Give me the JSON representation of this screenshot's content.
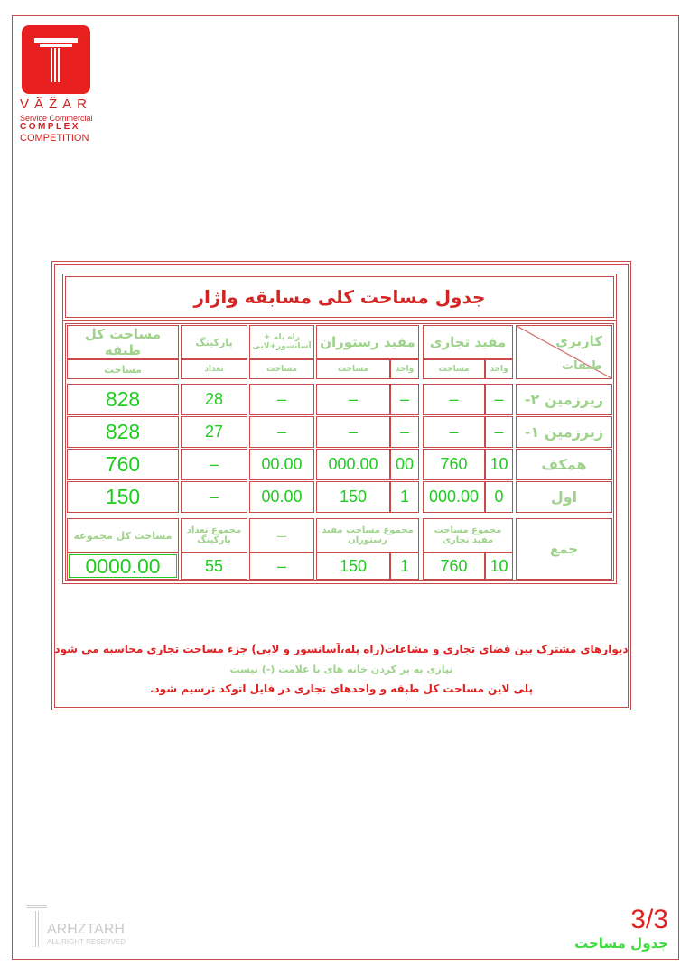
{
  "logo": {
    "name": "VÃŽAR",
    "line1": "Service Commercial",
    "line2": "COMPLEX",
    "line3": "COMPETITION"
  },
  "title": "جدول مساحت کلی مسابقه واژار",
  "headers": {
    "usage": "کاربری",
    "floors": "طبقات",
    "commercial": "مفید تجاری",
    "restaurant": "مفید رستوران",
    "stair": "راه پله + آسانسور+لابی",
    "parking": "پارکینگ",
    "total": "مساحت کل طبقه",
    "unit": "واحد",
    "area": "مساحت",
    "count": "تعداد"
  },
  "rows": [
    {
      "floor": "زیرزمین ۲-",
      "com_unit": "–",
      "com_area": "–",
      "res_unit": "–",
      "res_area": "–",
      "stair": "–",
      "parking": "28",
      "total": "828"
    },
    {
      "floor": "زیرزمین ۱-",
      "com_unit": "–",
      "com_area": "–",
      "res_unit": "–",
      "res_area": "–",
      "stair": "–",
      "parking": "27",
      "total": "828"
    },
    {
      "floor": "همکف",
      "com_unit": "10",
      "com_area": "760",
      "res_unit": "00",
      "res_area": "000.00",
      "stair": "00.00",
      "parking": "–",
      "total": "760"
    },
    {
      "floor": "اول",
      "com_unit": "0",
      "com_area": "000.00",
      "res_unit": "1",
      "res_area": "150",
      "stair": "00.00",
      "parking": "–",
      "total": "150"
    }
  ],
  "totals": {
    "label": "جمع",
    "com_label": "مجموع مساحت مفید تجاری",
    "res_label": "مجموع مساحت مفید رستوران",
    "stair_label": "–",
    "parking_label": "مجموع تعداد پارکینگ",
    "total_label": "مساحت کل مجموعه",
    "com_unit": "10",
    "com_area": "760",
    "res_unit": "1",
    "res_area": "150",
    "stair": "–",
    "parking": "55",
    "total": "0000.00"
  },
  "notes": [
    "دیوارهای مشترک بین فضای تجاری و مشاعات(راه پله،آسانسور و لابی) جزء مساحت  تجاری محاسبه می شود",
    "نیازی به پر کردن خانه های با علامت (-) نیست",
    "پلی لاین مساحت کل طبقه و واحدهای تجاری در فایل اتوکد ترسیم شود."
  ],
  "footer": {
    "brand": "ARHZTARH",
    "rights": "ALL RIGHT RESERVED",
    "page": "3/3",
    "caption": "جدول مساحت"
  },
  "colors": {
    "border": "#c94a4a",
    "accent_red": "#e8201f",
    "green": "#1fcc1f",
    "light_green": "#9fd38c"
  }
}
